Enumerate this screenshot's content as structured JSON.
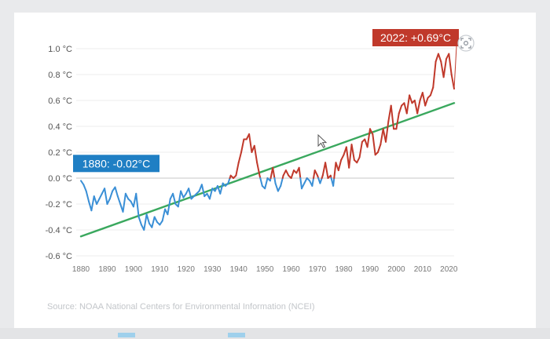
{
  "chart_data": {
    "type": "line",
    "title": "",
    "xlabel": "",
    "ylabel": "",
    "xlim": [
      1880,
      2022
    ],
    "ylim": [
      -0.6,
      1.0
    ],
    "y_ticks": [
      1.0,
      0.8,
      0.6,
      0.4,
      0.2,
      0.0,
      -0.2,
      -0.4,
      -0.6
    ],
    "y_tick_labels": [
      "1.0 °C",
      "0.8 °C",
      "0.6 °C",
      "0.4 °C",
      "0.2 °C",
      "0.0 °C",
      "-0.2 °C",
      "-0.4 °C",
      "-0.6 °C"
    ],
    "x_ticks": [
      1880,
      1890,
      1900,
      1910,
      1920,
      1930,
      1940,
      1950,
      1960,
      1970,
      1980,
      1990,
      2000,
      2010,
      2020
    ],
    "x_tick_labels": [
      "1880",
      "1890",
      "1900",
      "1910",
      "1920",
      "1930",
      "1940",
      "1950",
      "1960",
      "1970",
      "1980",
      "1990",
      "2000",
      "2010",
      "2020"
    ],
    "zero_line": 0.0,
    "series": [
      {
        "color_positive": "#c0392b",
        "color_negative": "#3a8fd6",
        "x": [
          1880,
          1881,
          1882,
          1883,
          1884,
          1885,
          1886,
          1887,
          1888,
          1889,
          1890,
          1891,
          1892,
          1893,
          1894,
          1895,
          1896,
          1897,
          1898,
          1899,
          1900,
          1901,
          1902,
          1903,
          1904,
          1905,
          1906,
          1907,
          1908,
          1909,
          1910,
          1911,
          1912,
          1913,
          1914,
          1915,
          1916,
          1917,
          1918,
          1919,
          1920,
          1921,
          1922,
          1923,
          1924,
          1925,
          1926,
          1927,
          1928,
          1929,
          1930,
          1931,
          1932,
          1933,
          1934,
          1935,
          1936,
          1937,
          1938,
          1939,
          1940,
          1941,
          1942,
          1943,
          1944,
          1945,
          1946,
          1947,
          1948,
          1949,
          1950,
          1951,
          1952,
          1953,
          1954,
          1955,
          1956,
          1957,
          1958,
          1959,
          1960,
          1961,
          1962,
          1963,
          1964,
          1965,
          1966,
          1967,
          1968,
          1969,
          1970,
          1971,
          1972,
          1973,
          1974,
          1975,
          1976,
          1977,
          1978,
          1979,
          1980,
          1981,
          1982,
          1983,
          1984,
          1985,
          1986,
          1987,
          1988,
          1989,
          1990,
          1991,
          1992,
          1993,
          1994,
          1995,
          1996,
          1997,
          1998,
          1999,
          2000,
          2001,
          2002,
          2003,
          2004,
          2005,
          2006,
          2007,
          2008,
          2009,
          2010,
          2011,
          2012,
          2013,
          2014,
          2015,
          2016,
          2017,
          2018,
          2019,
          2020,
          2021,
          2022
        ],
        "values": [
          -0.02,
          -0.05,
          -0.1,
          -0.18,
          -0.25,
          -0.14,
          -0.2,
          -0.16,
          -0.12,
          -0.08,
          -0.2,
          -0.16,
          -0.1,
          -0.07,
          -0.14,
          -0.2,
          -0.26,
          -0.12,
          -0.16,
          -0.18,
          -0.22,
          -0.12,
          -0.3,
          -0.36,
          -0.4,
          -0.28,
          -0.35,
          -0.38,
          -0.3,
          -0.34,
          -0.36,
          -0.33,
          -0.24,
          -0.28,
          -0.16,
          -0.12,
          -0.2,
          -0.22,
          -0.1,
          -0.15,
          -0.12,
          -0.08,
          -0.16,
          -0.14,
          -0.12,
          -0.1,
          -0.05,
          -0.14,
          -0.12,
          -0.16,
          -0.08,
          -0.1,
          -0.06,
          -0.12,
          -0.04,
          -0.06,
          -0.04,
          0.02,
          0.0,
          0.02,
          0.12,
          0.2,
          0.3,
          0.3,
          0.34,
          0.2,
          0.25,
          0.12,
          0.02,
          -0.06,
          -0.08,
          0.0,
          -0.02,
          0.08,
          -0.04,
          -0.1,
          -0.06,
          0.02,
          0.06,
          0.02,
          0.0,
          0.06,
          0.04,
          0.08,
          -0.08,
          -0.04,
          0.0,
          -0.02,
          -0.06,
          0.06,
          0.02,
          -0.04,
          0.02,
          0.12,
          0.0,
          0.02,
          -0.06,
          0.12,
          0.06,
          0.14,
          0.18,
          0.24,
          0.08,
          0.26,
          0.14,
          0.12,
          0.16,
          0.28,
          0.3,
          0.24,
          0.38,
          0.34,
          0.18,
          0.2,
          0.26,
          0.38,
          0.28,
          0.44,
          0.56,
          0.38,
          0.38,
          0.5,
          0.56,
          0.58,
          0.5,
          0.64,
          0.58,
          0.6,
          0.5,
          0.6,
          0.66,
          0.56,
          0.62,
          0.64,
          0.7,
          0.9,
          0.96,
          0.9,
          0.78,
          0.92,
          0.96,
          0.8,
          0.69
        ]
      }
    ],
    "trend": {
      "color": "#3aa85e",
      "x": [
        1880,
        2022
      ],
      "values": [
        -0.45,
        0.58
      ]
    },
    "annotations": [
      {
        "text": "1880: -0.02°C",
        "x": 1880,
        "y": -0.02,
        "color": "#1f7fc4"
      },
      {
        "text": "2022: +0.69°C",
        "x": 2022,
        "y": 0.69,
        "color": "#c0392b"
      }
    ]
  },
  "source": "Source: NOAA National Centers for Environmental Information (NCEI)",
  "icons": [
    "screenshot-icon",
    "cursor-icon"
  ]
}
